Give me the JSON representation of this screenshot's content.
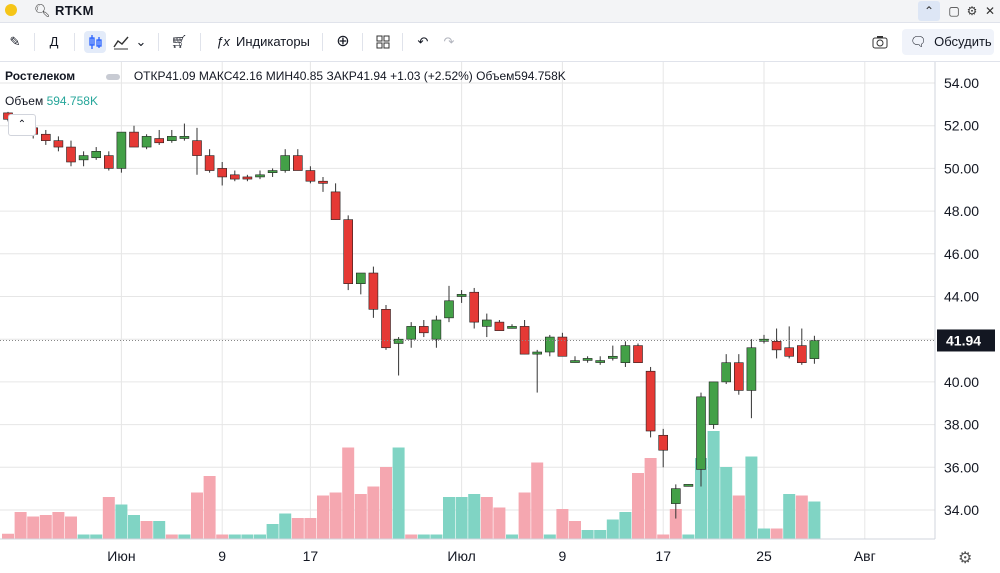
{
  "app": {
    "ticker": "RTKM",
    "toolbar": {
      "interval": "Д",
      "indicators": "Индикаторы",
      "discuss": "Обсудить"
    }
  },
  "legend": {
    "symbol": "Ростелеком",
    "open_label": "ОТКР",
    "open": "41.09",
    "high_label": "МАКС",
    "high": "42.16",
    "low_label": "МИН",
    "low": "40.85",
    "close_label": "ЗАКР",
    "close": "41.94",
    "change": "+1.03 (+2.52%)",
    "volume_label": "Объем",
    "volume": "594.758K",
    "volume_row_label": "Объем",
    "volume_row_value": "594.758K"
  },
  "colors": {
    "up": "#26a69a",
    "down": "#ef5350",
    "up_vol": "#80d4c4",
    "down_vol": "#f5a7b0",
    "candle_up": "#43a047",
    "candle_down": "#e53935"
  },
  "chart_data": {
    "type": "candlestick",
    "ylim": [
      32.5,
      55.0
    ],
    "y_ticks": [
      34,
      36,
      38,
      40,
      42,
      44,
      46,
      48,
      50,
      52,
      54
    ],
    "y_tick_labels": [
      "34.00",
      "36.00",
      "38.00",
      "40.00",
      "42.00",
      "44.00",
      "46.00",
      "48.00",
      "50.00",
      "52.00",
      "54.00"
    ],
    "last_price": "41.94",
    "x_labels": [
      {
        "label": "Июн",
        "index": 9
      },
      {
        "label": "9",
        "index": 17
      },
      {
        "label": "17",
        "index": 24
      },
      {
        "label": "Июл",
        "index": 36
      },
      {
        "label": "9",
        "index": 44
      },
      {
        "label": "17",
        "index": 52
      },
      {
        "label": "25",
        "index": 60
      },
      {
        "label": "Авг",
        "index": 68
      }
    ],
    "candles": [
      [
        52.6,
        52.65,
        52.2,
        52.3
      ],
      [
        52.3,
        52.4,
        51.7,
        51.8
      ],
      [
        51.9,
        52.0,
        51.4,
        51.6
      ],
      [
        51.6,
        51.8,
        51.1,
        51.3
      ],
      [
        51.3,
        51.5,
        50.8,
        51.0
      ],
      [
        51.0,
        51.3,
        50.1,
        50.3
      ],
      [
        50.4,
        50.8,
        50.1,
        50.6
      ],
      [
        50.5,
        51.0,
        50.4,
        50.8
      ],
      [
        50.6,
        50.8,
        49.9,
        50.0
      ],
      [
        50.0,
        51.7,
        49.8,
        51.7
      ],
      [
        51.7,
        52.0,
        51.0,
        51.0
      ],
      [
        51.0,
        51.6,
        50.9,
        51.5
      ],
      [
        51.4,
        51.8,
        51.1,
        51.2
      ],
      [
        51.3,
        51.8,
        51.2,
        51.5
      ],
      [
        51.4,
        52.1,
        51.3,
        51.5
      ],
      [
        51.3,
        51.9,
        49.7,
        50.6
      ],
      [
        50.6,
        50.9,
        49.8,
        49.9
      ],
      [
        50.0,
        50.3,
        49.2,
        49.6
      ],
      [
        49.7,
        49.9,
        49.4,
        49.5
      ],
      [
        49.6,
        49.7,
        49.4,
        49.5
      ],
      [
        49.6,
        49.9,
        49.5,
        49.7
      ],
      [
        49.8,
        50.0,
        49.6,
        49.9
      ],
      [
        49.9,
        50.9,
        49.8,
        50.6
      ],
      [
        50.6,
        50.9,
        49.9,
        49.9
      ],
      [
        49.9,
        50.1,
        49.3,
        49.4
      ],
      [
        49.4,
        49.6,
        48.9,
        49.3
      ],
      [
        48.9,
        49.3,
        47.6,
        47.6
      ],
      [
        47.6,
        47.8,
        44.3,
        44.6
      ],
      [
        44.6,
        45.1,
        44.1,
        45.1
      ],
      [
        45.1,
        45.4,
        43.0,
        43.4
      ],
      [
        43.4,
        43.6,
        41.5,
        41.6
      ],
      [
        41.8,
        42.1,
        40.3,
        42.0
      ],
      [
        42.0,
        42.8,
        41.6,
        42.6
      ],
      [
        42.6,
        42.9,
        42.1,
        42.3
      ],
      [
        42.0,
        43.1,
        41.6,
        42.9
      ],
      [
        43.0,
        44.5,
        42.8,
        43.8
      ],
      [
        44.0,
        44.3,
        43.7,
        44.1
      ],
      [
        44.2,
        44.4,
        42.5,
        42.8
      ],
      [
        42.6,
        43.2,
        42.1,
        42.9
      ],
      [
        42.8,
        42.9,
        42.4,
        42.4
      ],
      [
        42.6,
        42.7,
        42.5,
        42.6
      ],
      [
        42.6,
        42.9,
        41.3,
        41.3
      ],
      [
        41.3,
        41.5,
        39.5,
        41.4
      ],
      [
        41.4,
        42.2,
        41.2,
        42.1
      ],
      [
        42.1,
        42.3,
        41.2,
        41.2
      ],
      [
        41.0,
        41.2,
        40.9,
        41.0
      ],
      [
        41.1,
        41.2,
        40.9,
        41.1
      ],
      [
        41.0,
        41.2,
        40.8,
        41.0
      ],
      [
        41.1,
        41.7,
        41.0,
        41.2
      ],
      [
        40.9,
        41.9,
        40.7,
        41.7
      ],
      [
        41.7,
        41.8,
        40.9,
        40.9
      ],
      [
        40.5,
        40.7,
        37.4,
        37.7
      ],
      [
        37.5,
        37.8,
        36.0,
        36.8
      ],
      [
        34.3,
        35.2,
        33.6,
        35.0
      ],
      [
        35.2,
        35.2,
        35.1,
        35.2
      ],
      [
        35.9,
        39.5,
        35.1,
        39.3
      ],
      [
        38.0,
        40.0,
        37.8,
        40.0
      ],
      [
        40.0,
        41.3,
        39.9,
        40.9
      ],
      [
        40.9,
        41.3,
        39.4,
        39.6
      ],
      [
        39.6,
        42.0,
        38.3,
        41.6
      ],
      [
        41.9,
        42.2,
        41.8,
        42.0
      ],
      [
        41.9,
        42.5,
        41.1,
        41.5
      ],
      [
        41.6,
        42.6,
        41.1,
        41.2
      ],
      [
        41.7,
        42.5,
        40.8,
        40.9
      ],
      [
        41.09,
        42.16,
        40.85,
        41.94
      ]
    ],
    "volumes": [
      [
        0.35,
        "d"
      ],
      [
        1.8,
        "d"
      ],
      [
        1.5,
        "d"
      ],
      [
        1.6,
        "d"
      ],
      [
        1.8,
        "d"
      ],
      [
        1.5,
        "d"
      ],
      [
        0.3,
        "u"
      ],
      [
        0.3,
        "u"
      ],
      [
        2.8,
        "d"
      ],
      [
        2.3,
        "u"
      ],
      [
        1.6,
        "u"
      ],
      [
        1.2,
        "d"
      ],
      [
        1.2,
        "u"
      ],
      [
        0.3,
        "d"
      ],
      [
        0.3,
        "u"
      ],
      [
        3.1,
        "d"
      ],
      [
        4.2,
        "d"
      ],
      [
        0.3,
        "d"
      ],
      [
        0.3,
        "u"
      ],
      [
        0.3,
        "u"
      ],
      [
        0.3,
        "u"
      ],
      [
        1.0,
        "u"
      ],
      [
        1.7,
        "u"
      ],
      [
        1.4,
        "d"
      ],
      [
        1.4,
        "d"
      ],
      [
        2.9,
        "d"
      ],
      [
        3.1,
        "d"
      ],
      [
        6.1,
        "d"
      ],
      [
        3.0,
        "d"
      ],
      [
        3.5,
        "d"
      ],
      [
        4.8,
        "d"
      ],
      [
        6.1,
        "u"
      ],
      [
        0.3,
        "d"
      ],
      [
        0.3,
        "u"
      ],
      [
        0.3,
        "u"
      ],
      [
        2.8,
        "u"
      ],
      [
        2.8,
        "u"
      ],
      [
        3.0,
        "u"
      ],
      [
        2.8,
        "d"
      ],
      [
        2.1,
        "d"
      ],
      [
        0.3,
        "u"
      ],
      [
        3.1,
        "d"
      ],
      [
        5.1,
        "d"
      ],
      [
        0.3,
        "u"
      ],
      [
        2.0,
        "d"
      ],
      [
        1.2,
        "d"
      ],
      [
        0.6,
        "u"
      ],
      [
        0.6,
        "u"
      ],
      [
        1.3,
        "u"
      ],
      [
        1.8,
        "u"
      ],
      [
        4.4,
        "d"
      ],
      [
        5.4,
        "d"
      ],
      [
        0.3,
        "d"
      ],
      [
        2.0,
        "d"
      ],
      [
        0.3,
        "u"
      ],
      [
        5.4,
        "u"
      ],
      [
        7.2,
        "u"
      ],
      [
        4.8,
        "u"
      ],
      [
        2.9,
        "d"
      ],
      [
        5.5,
        "u"
      ],
      [
        0.7,
        "u"
      ],
      [
        0.7,
        "d"
      ],
      [
        3.0,
        "u"
      ],
      [
        2.9,
        "d"
      ],
      [
        2.5,
        "u"
      ]
    ]
  }
}
